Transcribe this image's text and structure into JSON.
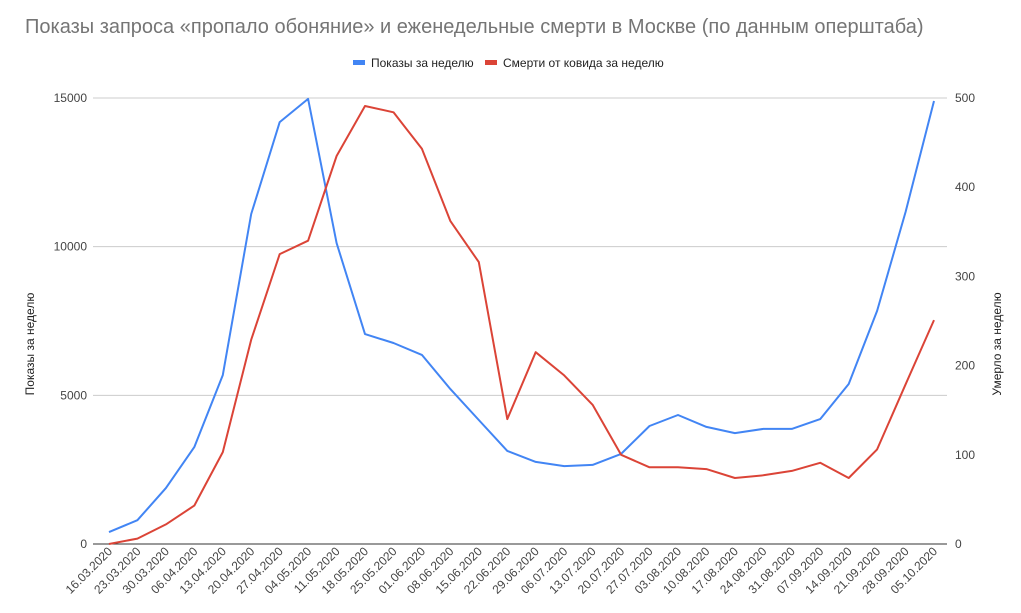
{
  "chart_data": {
    "type": "line",
    "title": "Показы запроса «пропало обоняние» и еженедельные смерти в Москве (по данным оперштаба)",
    "ylabel_left": "Показы за неделю",
    "ylabel_right": "Умерло за неделю",
    "ylim_left": [
      0,
      15000
    ],
    "ylim_right": [
      0,
      500
    ],
    "yticks_left": [
      "0",
      "5000",
      "10000",
      "15000"
    ],
    "yticks_right": [
      "0",
      "100",
      "200",
      "300",
      "400",
      "500"
    ],
    "grid": true,
    "legend": "top",
    "categories": [
      "16.03.2020",
      "23.03.2020",
      "30.03.2020",
      "06.04.2020",
      "13.04.2020",
      "20.04.2020",
      "27.04.2020",
      "04.05.2020",
      "11.05.2020",
      "18.05.2020",
      "25.05.2020",
      "01.06.2020",
      "08.06.2020",
      "15.06.2020",
      "22.06.2020",
      "29.06.2020",
      "06.07.2020",
      "13.07.2020",
      "20.07.2020",
      "27.07.2020",
      "03.08.2020",
      "10.08.2020",
      "17.08.2020",
      "24.08.2020",
      "31.08.2020",
      "07.09.2020",
      "14.09.2020",
      "21.09.2020",
      "28.09.2020",
      "05.10.2020"
    ],
    "series": [
      {
        "name": "Показы за неделю",
        "axis": "left",
        "color": "#4285f4",
        "values": [
          400,
          800,
          1880,
          3260,
          5680,
          11100,
          14190,
          14970,
          10120,
          7060,
          6760,
          6360,
          5210,
          4170,
          3130,
          2760,
          2620,
          2660,
          3030,
          3970,
          4340,
          3940,
          3730,
          3870,
          3870,
          4200,
          5380,
          7840,
          11170,
          14900
        ]
      },
      {
        "name": "Смерти от ковида за неделю",
        "axis": "right",
        "color": "#db4437",
        "values": [
          0,
          6,
          22,
          43,
          103,
          229,
          325,
          340,
          435,
          491,
          484,
          443,
          362,
          316,
          140,
          215,
          189,
          156,
          100,
          86,
          86,
          84,
          74,
          77,
          82,
          91,
          74,
          106,
          179,
          251
        ]
      }
    ]
  }
}
